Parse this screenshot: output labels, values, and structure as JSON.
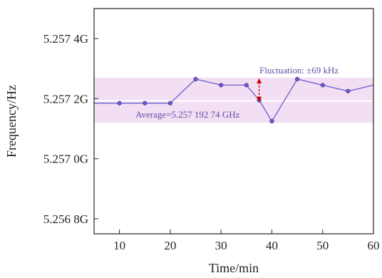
{
  "chart_data": {
    "type": "line",
    "title": "",
    "xlabel": "Time/min",
    "ylabel": "Frequency/Hz",
    "xlim": [
      5,
      60
    ],
    "ylim": [
      5.25675,
      5.2575
    ],
    "x_ticks": [
      {
        "value": 10,
        "label": "10"
      },
      {
        "value": 20,
        "label": "20"
      },
      {
        "value": 30,
        "label": "30"
      },
      {
        "value": 40,
        "label": "40"
      },
      {
        "value": 50,
        "label": "50"
      },
      {
        "value": 60,
        "label": "60"
      }
    ],
    "y_ticks": [
      {
        "value": 5.2568,
        "label": "5.256 8G"
      },
      {
        "value": 5.257,
        "label": "5.257 0G"
      },
      {
        "value": 5.2572,
        "label": "5.257 2G"
      },
      {
        "value": 5.2574,
        "label": "5.257 4G"
      }
    ],
    "series": [
      {
        "x": [
          5,
          10,
          15,
          20,
          25,
          30,
          35,
          37.5,
          40,
          45,
          50,
          55,
          60
        ],
        "y": [
          5.257185,
          5.257185,
          5.257185,
          5.257185,
          5.257265,
          5.257245,
          5.257245,
          5.257195,
          5.257125,
          5.257265,
          5.257245,
          5.257225,
          5.257245
        ],
        "markers_at": [
          10,
          15,
          20,
          25,
          30,
          35,
          37.5,
          40,
          45,
          50,
          55
        ]
      }
    ],
    "average": {
      "value": 5.25719274,
      "label": "Average=5.257 192 74 GHz"
    },
    "fluctuation_band": {
      "low": 5.25712,
      "high": 5.25727,
      "label": "Fluctuation: ±69 kHz",
      "arrow_x": 37.5
    },
    "colors": {
      "line": "#6a5acd",
      "marker": "#6a5acd",
      "band": "#f3dff3",
      "arrow": "#cc0000",
      "average_label": "#5b4fa8",
      "fluct_label": "#5b4fa8"
    },
    "grid": false,
    "legend": "none"
  }
}
